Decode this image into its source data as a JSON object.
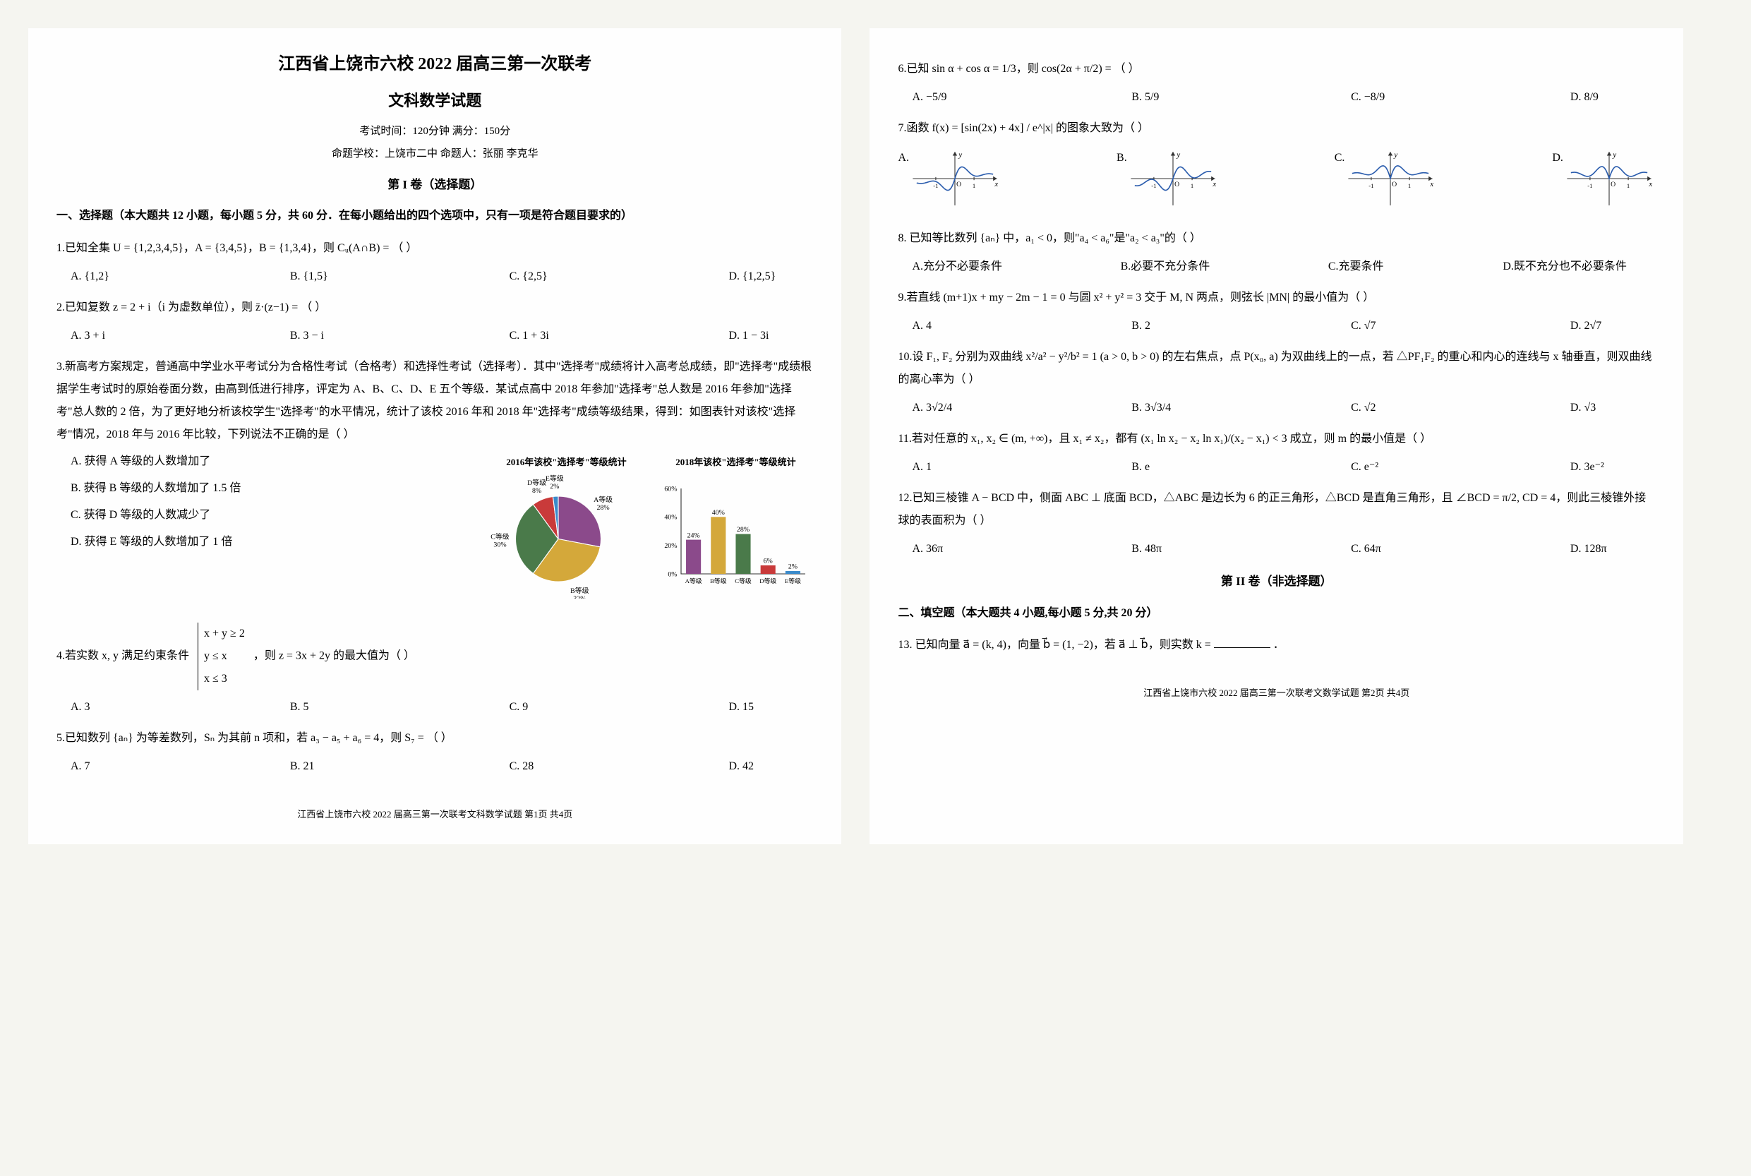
{
  "header": {
    "title": "江西省上饶市六校 2022 届高三第一次联考",
    "subtitle": "文科数学试题",
    "exam_info": "考试时间：120分钟    满分：150分",
    "school_info": "命题学校：上饶市二中    命题人：张丽 李克华",
    "section1_header": "第 I 卷（选择题）"
  },
  "section1_instruction": "一、选择题（本大题共 12 小题，每小题 5 分，共 60 分．在每小题给出的四个选项中，只有一项是符合题目要求的）",
  "q1": {
    "text": "1.已知全集 U = {1,2,3,4,5}，A = {3,4,5}，B = {1,3,4}，则 Cᵤ(A∩B) = （    ）",
    "options": [
      "A. {1,2}",
      "B. {1,5}",
      "C. {2,5}",
      "D. {1,2,5}"
    ]
  },
  "q2": {
    "text": "2.已知复数 z = 2 + i（i 为虚数单位），则 z̄·(z−1) = （    ）",
    "options": [
      "A. 3 + i",
      "B. 3 − i",
      "C. 1 + 3i",
      "D. 1 − 3i"
    ]
  },
  "q3": {
    "text": "3.新高考方案规定，普通高中学业水平考试分为合格性考试（合格考）和选择性考试（选择考）．其中\"选择考\"成绩将计入高考总成绩，即\"选择考\"成绩根据学生考试时的原始卷面分数，由高到低进行排序，评定为 A、B、C、D、E 五个等级．某试点高中 2018 年参加\"选择考\"总人数是 2016 年参加\"选择考\"总人数的 2 倍，为了更好地分析该校学生\"选择考\"的水平情况，统计了该校 2016 年和 2018 年\"选择考\"成绩等级结果，得到：如图表针对该校\"选择考\"情况，2018 年与 2016 年比较，下列说法不正确的是（    ）",
    "sub_options": [
      "A. 获得 A 等级的人数增加了",
      "B. 获得 B 等级的人数增加了 1.5 倍",
      "C. 获得 D 等级的人数减少了",
      "D. 获得 E 等级的人数增加了 1 倍"
    ],
    "pie_chart": {
      "title": "2016年该校\"选择考\"等级统计",
      "slices": [
        {
          "label": "A等级",
          "value": 28,
          "color": "#8b4a8b"
        },
        {
          "label": "B等级",
          "value": 32,
          "color": "#d4a83a"
        },
        {
          "label": "C等级",
          "value": 30,
          "color": "#4a7a4a"
        },
        {
          "label": "D等级",
          "value": 8,
          "color": "#c93a3a"
        },
        {
          "label": "E等级",
          "value": 2,
          "color": "#3a8aca"
        }
      ]
    },
    "bar_chart": {
      "title": "2018年该校\"选择考\"等级统计",
      "bars": [
        {
          "label": "A等级",
          "value": 24,
          "color": "#8b4a8b"
        },
        {
          "label": "B等级",
          "value": 40,
          "color": "#d4a83a"
        },
        {
          "label": "C等级",
          "value": 28,
          "color": "#4a7a4a"
        },
        {
          "label": "D等级",
          "value": 6,
          "color": "#c93a3a"
        },
        {
          "label": "E等级",
          "value": 2,
          "color": "#3a8aca"
        }
      ],
      "ymax": 60,
      "ytick_step": 20
    }
  },
  "q4": {
    "text": "4.若实数 x, y 满足约束条件",
    "constraints": [
      "x + y ≥ 2",
      "y ≤ x",
      "x ≤ 3"
    ],
    "text2": "，则 z = 3x + 2y 的最大值为（    ）",
    "options": [
      "A. 3",
      "B. 5",
      "C. 9",
      "D. 15"
    ]
  },
  "q5": {
    "text": "5.已知数列 {aₙ} 为等差数列，Sₙ 为其前 n 项和，若 a₃ − a₅ + a₆ = 4，则 S₇ = （    ）",
    "options": [
      "A. 7",
      "B. 21",
      "C. 28",
      "D. 42"
    ]
  },
  "q6": {
    "text": "6.已知 sin α + cos α = 1/3，则 cos(2α + π/2) = （    ）",
    "options": [
      "A. −5/9",
      "B. 5/9",
      "C. −8/9",
      "D. 8/9"
    ]
  },
  "q7": {
    "text": "7.函数 f(x) = [sin(2x) + 4x] / e^|x| 的图象大致为（    ）",
    "graph_colors": {
      "axis": "#333333",
      "curve": "#2a5cad"
    }
  },
  "q8": {
    "text": "8. 已知等比数列 {aₙ} 中，a₁ < 0，则\"a₄ < a₆\"是\"a₂ < a₃\"的（    ）",
    "options": [
      "A.充分不必要条件",
      "B.必要不充分条件",
      "C.充要条件",
      "D.既不充分也不必要条件"
    ]
  },
  "q9": {
    "text": "9.若直线 (m+1)x + my − 2m − 1 = 0 与圆 x² + y² = 3 交于 M, N 两点，则弦长 |MN| 的最小值为（   ）",
    "options": [
      "A. 4",
      "B. 2",
      "C. √7",
      "D. 2√7"
    ]
  },
  "q10": {
    "text": "10.设 F₁, F₂ 分别为双曲线 x²/a² − y²/b² = 1 (a > 0, b > 0) 的左右焦点，点 P(x₀, a) 为双曲线上的一点，若 △PF₁F₂ 的重心和内心的连线与 x 轴垂直，则双曲线的离心率为（    ）",
    "options": [
      "A. 3√2/4",
      "B. 3√3/4",
      "C. √2",
      "D. √3"
    ]
  },
  "q11": {
    "text": "11.若对任意的 x₁, x₂ ∈ (m, +∞)，且 x₁ ≠ x₂，都有 (x₁ ln x₂ − x₂ ln x₁)/(x₂ − x₁) < 3 成立，则 m 的最小值是（    ）",
    "options": [
      "A. 1",
      "B. e",
      "C. e⁻²",
      "D. 3e⁻²"
    ]
  },
  "q12": {
    "text": "12.已知三棱锥 A − BCD 中，侧面 ABC ⊥ 底面 BCD，△ABC 是边长为 6 的正三角形，△BCD 是直角三角形，且 ∠BCD = π/2, CD = 4，则此三棱锥外接球的表面积为（    ）",
    "options": [
      "A. 36π",
      "B. 48π",
      "C. 64π",
      "D. 128π"
    ]
  },
  "section2_header": "第 II 卷（非选择题）",
  "section2_instruction": "二、填空题（本大题共 4 小题,每小题 5 分,共 20 分）",
  "q13": {
    "text": "13. 已知向量 a⃗ = (k, 4)，向量 b⃗ = (1, −2)，若 a⃗ ⊥ b⃗，则实数 k = ",
    "suffix": "．"
  },
  "footer1": "江西省上饶市六校  2022 届高三第一次联考文科数学试题    第1页    共4页",
  "footer2": "江西省上饶市六校  2022 届高三第一次联考文数学试题    第2页    共4页"
}
